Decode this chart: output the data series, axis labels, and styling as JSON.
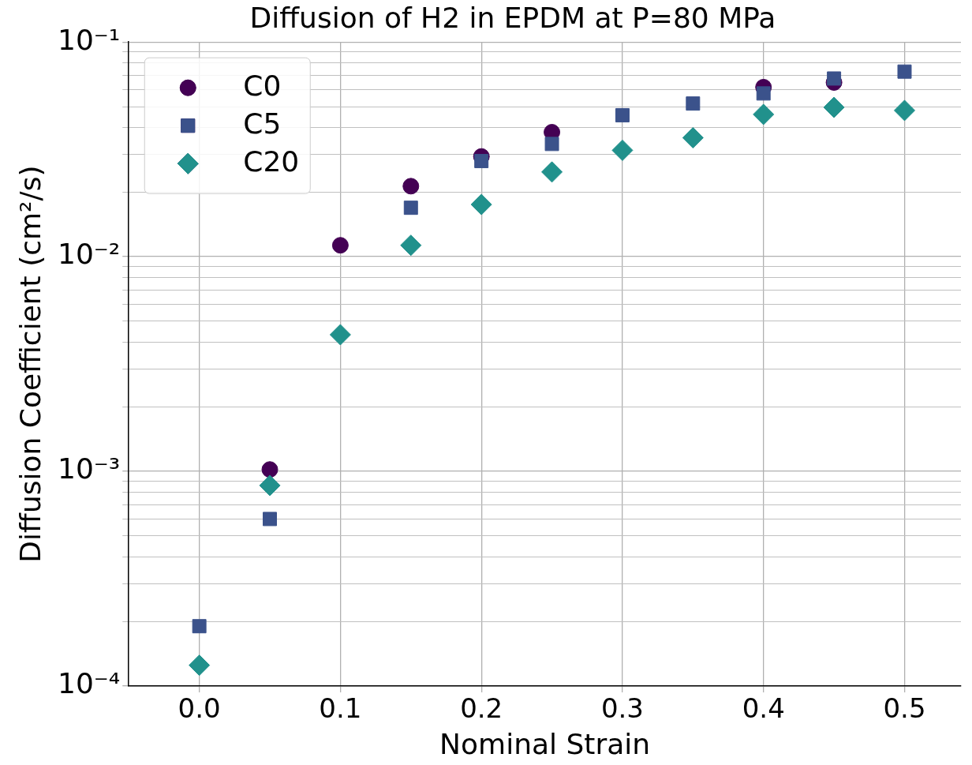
{
  "chart_data": {
    "type": "scatter",
    "title": "Diffusion of H2 in EPDM at P=80 MPa",
    "xlabel": "Nominal Strain",
    "ylabel": "Diffusion Coefficient (cm²/s)",
    "x": [
      0,
      0.05,
      0.1,
      0.15,
      0.2,
      0.25,
      0.3,
      0.35,
      0.4,
      0.45,
      0.5
    ],
    "series": [
      {
        "name": "C0",
        "color": "#440154",
        "marker": "circle",
        "values": [
          null,
          0.00102,
          0.0113,
          0.0213,
          0.0293,
          0.038,
          null,
          null,
          0.0616,
          0.0648,
          null
        ]
      },
      {
        "name": "C5",
        "color": "#3b528b",
        "marker": "square",
        "values": [
          0.00019,
          0.0006,
          null,
          0.0169,
          0.0279,
          0.0335,
          0.0456,
          0.0517,
          0.0576,
          0.0676,
          0.0728
        ]
      },
      {
        "name": "C20",
        "color": "#21918c",
        "marker": "diamond",
        "values": [
          0.000125,
          0.00086,
          0.00433,
          0.0113,
          0.0175,
          0.0248,
          0.0313,
          0.0358,
          0.046,
          0.0496,
          0.048
        ]
      }
    ],
    "log": "y",
    "xlim": [
      -0.05,
      0.54
    ],
    "ylim": [
      0.0001,
      0.1
    ],
    "xticks": [
      {
        "value": 0,
        "label": "0.0"
      },
      0.1,
      0.2,
      0.3,
      0.4,
      0.5
    ],
    "yticks": [
      {
        "value": 0.0001,
        "label": "10⁻⁴"
      },
      {
        "value": 0.0002,
        "label": null
      },
      {
        "value": 0.0003,
        "label": null
      },
      {
        "value": 0.0004,
        "label": null
      },
      {
        "value": 0.0005,
        "label": null
      },
      {
        "value": 0.0006,
        "label": null
      },
      {
        "value": 0.0007,
        "label": null
      },
      {
        "value": 0.0008,
        "label": null
      },
      {
        "value": 0.0009,
        "label": null
      },
      {
        "value": 0.001,
        "label": "10⁻³"
      },
      {
        "value": 0.002,
        "label": null
      },
      {
        "value": 0.003,
        "label": null
      },
      {
        "value": 0.004,
        "label": null
      },
      {
        "value": 0.005,
        "label": null
      },
      {
        "value": 0.006,
        "label": null
      },
      {
        "value": 0.007,
        "label": null
      },
      {
        "value": 0.008,
        "label": null
      },
      {
        "value": 0.009,
        "label": null
      },
      {
        "value": 0.01,
        "label": "10⁻²"
      },
      {
        "value": 0.02,
        "label": null
      },
      {
        "value": 0.03,
        "label": null
      },
      {
        "value": 0.04,
        "label": null
      },
      {
        "value": 0.05,
        "label": null
      },
      {
        "value": 0.06,
        "label": null
      },
      {
        "value": 0.07,
        "label": null
      },
      {
        "value": 0.08,
        "label": null
      },
      {
        "value": 0.09,
        "label": null
      },
      {
        "value": 0.1,
        "label": "10⁻¹"
      }
    ],
    "grid": true,
    "legend": "top left"
  }
}
